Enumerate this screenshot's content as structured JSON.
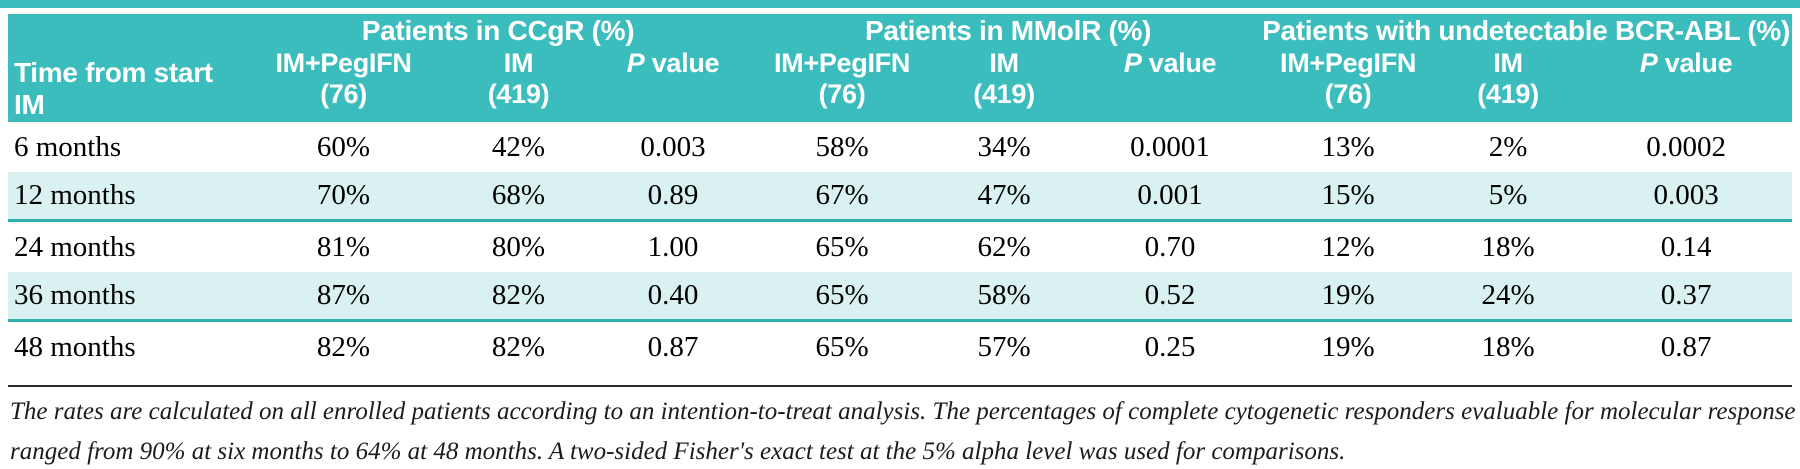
{
  "colors": {
    "header_teal": "#3cbdbd",
    "shaded_row": "#d9f1f1",
    "row_border_teal": "#2cb0b0",
    "separator_black": "#2b2b2b"
  },
  "table": {
    "corner_label": "Time from start IM",
    "groups": [
      {
        "title": "Patients in CCgR (%)"
      },
      {
        "title": "Patients in MMolR (%)"
      },
      {
        "title": "Patients with undetectable BCR-ABL (%)"
      }
    ],
    "sub_columns": [
      "IM+PegIFN",
      "IM"
    ],
    "p_label": {
      "italic": "P",
      "rest": " value"
    },
    "counts": [
      "(76)",
      "(419)"
    ],
    "rows": [
      {
        "label": "6 months",
        "shaded": false,
        "values": [
          "60%",
          "42%",
          "0.003",
          "58%",
          "34%",
          "0.0001",
          "13%",
          "2%",
          "0.0002"
        ]
      },
      {
        "label": "12 months",
        "shaded": true,
        "values": [
          "70%",
          "68%",
          "0.89",
          "67%",
          "47%",
          "0.001",
          "15%",
          "5%",
          "0.003"
        ]
      },
      {
        "label": "24 months",
        "shaded": false,
        "values": [
          "81%",
          "80%",
          "1.00",
          "65%",
          "62%",
          "0.70",
          "12%",
          "18%",
          "0.14"
        ]
      },
      {
        "label": "36 months",
        "shaded": true,
        "values": [
          "87%",
          "82%",
          "0.40",
          "65%",
          "58%",
          "0.52",
          "19%",
          "24%",
          "0.37"
        ]
      },
      {
        "label": "48 months",
        "shaded": false,
        "values": [
          "82%",
          "82%",
          "0.87",
          "65%",
          "57%",
          "0.25",
          "19%",
          "18%",
          "0.87"
        ]
      }
    ],
    "footnote_line1": "The rates are calculated on all enrolled patients according to an intention-to-treat analysis. The percentages of complete cytogenetic responders evaluable for molecular response",
    "footnote_line2": "ranged from 90% at six months to 64% at 48 months. A two-sided Fisher's exact test at the 5% alpha level was used for comparisons."
  }
}
